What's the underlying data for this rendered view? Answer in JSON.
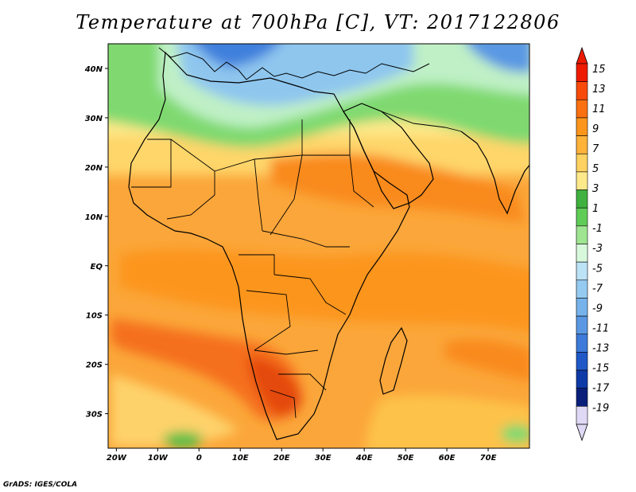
{
  "title": "Temperature at 700hPa [C], VT: 2017122806",
  "credit": "GrADS: IGES/COLA",
  "map": {
    "lon_range": [
      -22,
      80
    ],
    "lat_range": [
      -37,
      45
    ],
    "lat_ticks": [
      {
        "value": 40,
        "label": "40N"
      },
      {
        "value": 30,
        "label": "30N"
      },
      {
        "value": 20,
        "label": "20N"
      },
      {
        "value": 10,
        "label": "10N"
      },
      {
        "value": 0,
        "label": "EQ"
      },
      {
        "value": -10,
        "label": "10S"
      },
      {
        "value": -20,
        "label": "20S"
      },
      {
        "value": -30,
        "label": "30S"
      }
    ],
    "lon_ticks": [
      {
        "value": -20,
        "label": "20W"
      },
      {
        "value": -10,
        "label": "10W"
      },
      {
        "value": 0,
        "label": "0"
      },
      {
        "value": 10,
        "label": "10E"
      },
      {
        "value": 20,
        "label": "20E"
      },
      {
        "value": 30,
        "label": "30E"
      },
      {
        "value": 40,
        "label": "40E"
      },
      {
        "value": 50,
        "label": "50E"
      },
      {
        "value": 60,
        "label": "60E"
      },
      {
        "value": 70,
        "label": "70E"
      }
    ]
  },
  "colorbar": {
    "labels": [
      "15",
      "13",
      "11",
      "9",
      "7",
      "5",
      "3",
      "1",
      "-1",
      "-3",
      "-5",
      "-7",
      "-9",
      "-11",
      "-13",
      "-15",
      "-17",
      "-19"
    ],
    "colors": [
      "#ee1a00",
      "#f84a0a",
      "#fb7010",
      "#fc951c",
      "#fdb23a",
      "#fed260",
      "#fde98a",
      "#3fb140",
      "#60cc58",
      "#9fe591",
      "#d8f8dc",
      "#bce2f5",
      "#95cbf0",
      "#76b3ea",
      "#5a98e3",
      "#3d7ad9",
      "#2058c8",
      "#0e3aa8",
      "#0a1f7a",
      "#e0d9f5"
    ],
    "top_triangle_color": "#ee1a00",
    "bottom_triangle_color": "#e0d9f5"
  }
}
